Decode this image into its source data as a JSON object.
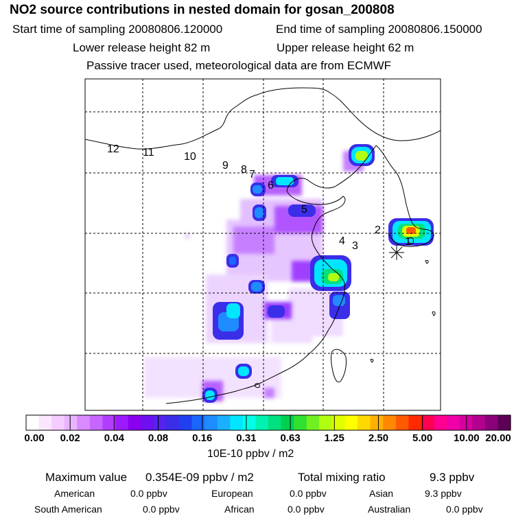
{
  "header": {
    "title": "NO2 source contributions in nested domain for gosan_200808",
    "start_label": "Start time of sampling 20080806.120000",
    "end_label": "End time of sampling 20080806.150000",
    "lower_label": "Lower release height   82 m",
    "upper_label": "Upper release height   62 m",
    "note": "Passive tracer used, meteorological data are from ECMWF"
  },
  "map": {
    "track_labels": [
      "1",
      "2",
      "3",
      "4",
      "5",
      "6",
      "7",
      "8",
      "9",
      "10",
      "11",
      "12"
    ],
    "release_site_marker": "asterisk-marker"
  },
  "colorbar": {
    "tick_labels": [
      "0.00",
      "0.02",
      "0.04",
      "0.08",
      "0.16",
      "0.31",
      "0.63",
      "1.25",
      "2.50",
      "5.00",
      "10.00",
      "20.00"
    ],
    "unit": "10E-10 ppbv / m2",
    "colors": [
      "#ffffff",
      "#fbe6ff",
      "#f5ccff",
      "#eab3ff",
      "#d98aff",
      "#c766ff",
      "#b23dff",
      "#9d1aff",
      "#8a00f0",
      "#6e10f0",
      "#5522ee",
      "#3a2ee8",
      "#2040f0",
      "#1a66ff",
      "#1e8cff",
      "#1ab0ff",
      "#00e6ff",
      "#00ffe6",
      "#00f2b0",
      "#00e080",
      "#00d050",
      "#30e030",
      "#70f020",
      "#b0ff10",
      "#e0ff00",
      "#ffff00",
      "#ffd800",
      "#ffb000",
      "#ff8800",
      "#ff5a00",
      "#ff2a00",
      "#ff0050",
      "#ff0090",
      "#f000a8",
      "#d600a0",
      "#b20090",
      "#8a0078",
      "#5e0058"
    ]
  },
  "stats": {
    "max_label": "Maximum value",
    "max_value": "0.354E-09 ppbv / m2",
    "total_label": "Total mixing ratio",
    "total_value": "9.3 ppbv",
    "regions": [
      {
        "name": "American",
        "value": "0.0 ppbv"
      },
      {
        "name": "European",
        "value": "0.0 ppbv"
      },
      {
        "name": "Asian",
        "value": "9.3 ppbv"
      },
      {
        "name": "South American",
        "value": "0.0 ppbv"
      },
      {
        "name": "African",
        "value": "0.0 ppbv"
      },
      {
        "name": "Australian",
        "value": "0.0 ppbv"
      }
    ]
  }
}
